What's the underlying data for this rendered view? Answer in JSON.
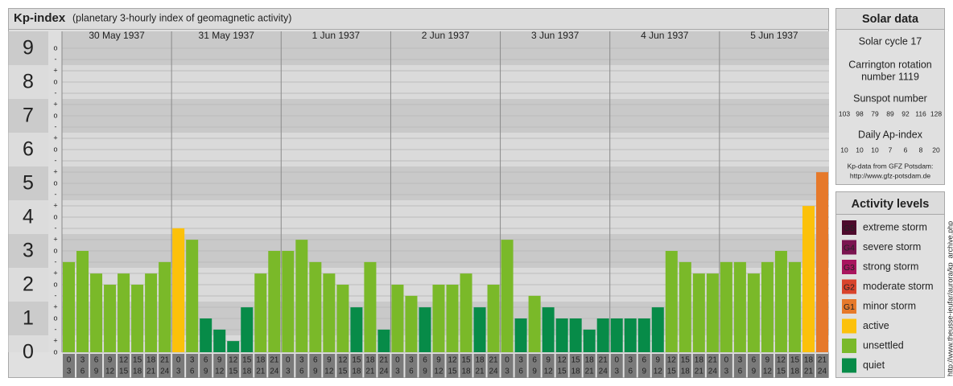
{
  "chart_data": {
    "type": "bar",
    "title": "Kp-index",
    "subtitle": "(planetary 3-hourly index of geomagnetic activity)",
    "days": [
      "30 May 1937",
      "31 May 1937",
      "1 Jun 1937",
      "2 Jun 1937",
      "3 Jun 1937",
      "4 Jun 1937",
      "5 Jun 1937"
    ],
    "hours": [
      [
        "0",
        "3"
      ],
      [
        "3",
        "6"
      ],
      [
        "6",
        "9"
      ],
      [
        "9",
        "12"
      ],
      [
        "12",
        "15"
      ],
      [
        "15",
        "18"
      ],
      [
        "18",
        "21"
      ],
      [
        "21",
        "24"
      ]
    ],
    "values": [
      2.67,
      3,
      2.33,
      2,
      2.33,
      2,
      2.33,
      2.67,
      3.67,
      3.33,
      1,
      0.67,
      0.33,
      1.33,
      2.33,
      3,
      3,
      3.33,
      2.67,
      2.33,
      2,
      1.33,
      2.67,
      0.67,
      2,
      1.67,
      1.33,
      2,
      2,
      2.33,
      1.33,
      2,
      3.33,
      1,
      1.67,
      1.33,
      1,
      1,
      0.67,
      1,
      1,
      1,
      1,
      1.33,
      3,
      2.67,
      2.33,
      2.33,
      2.67,
      2.67,
      2.33,
      2.67,
      3,
      2.67,
      4.33,
      5.33
    ],
    "colors": [
      "#7ab929",
      "#7ab929",
      "#7ab929",
      "#7ab929",
      "#7ab929",
      "#7ab929",
      "#7ab929",
      "#7ab929",
      "#fcc10a",
      "#7ab929",
      "#078b48",
      "#078b48",
      "#078b48",
      "#078b48",
      "#7ab929",
      "#7ab929",
      "#7ab929",
      "#7ab929",
      "#7ab929",
      "#7ab929",
      "#7ab929",
      "#078b48",
      "#7ab929",
      "#078b48",
      "#7ab929",
      "#7ab929",
      "#078b48",
      "#7ab929",
      "#7ab929",
      "#7ab929",
      "#078b48",
      "#7ab929",
      "#7ab929",
      "#078b48",
      "#7ab929",
      "#078b48",
      "#078b48",
      "#078b48",
      "#078b48",
      "#078b48",
      "#078b48",
      "#078b48",
      "#078b48",
      "#078b48",
      "#7ab929",
      "#7ab929",
      "#7ab929",
      "#7ab929",
      "#7ab929",
      "#7ab929",
      "#7ab929",
      "#7ab929",
      "#7ab929",
      "#7ab929",
      "#fcc10a",
      "#e6792a"
    ],
    "ylim": [
      0,
      9.5
    ],
    "yticks": [
      0,
      1,
      2,
      3,
      4,
      5,
      6,
      7,
      8,
      9
    ],
    "minor_tick_labels": [
      "-",
      "o",
      "+"
    ],
    "grid": true
  },
  "solar_data": {
    "title": "Solar data",
    "solar_cycle": "Solar cycle 17",
    "carrington": [
      "Carrington rotation",
      "number 1119"
    ],
    "sunspot_title": "Sunspot number",
    "sunspot_numbers": [
      103,
      98,
      79,
      89,
      92,
      116,
      128
    ],
    "ap_title": "Daily Ap-index",
    "ap_values": [
      10,
      10,
      10,
      7,
      6,
      8,
      20
    ],
    "source": [
      "Kp-data from GFZ Potsdam:",
      "http://www.gfz-potsdam.de"
    ]
  },
  "activity_levels": {
    "title": "Activity levels",
    "items": [
      {
        "code": "G5",
        "label": "extreme storm",
        "color": "#4d0a2c"
      },
      {
        "code": "G4",
        "label": "severe storm",
        "color": "#7a1450"
      },
      {
        "code": "G3",
        "label": "strong storm",
        "color": "#a8155e"
      },
      {
        "code": "G2",
        "label": "moderate storm",
        "color": "#d8432c"
      },
      {
        "code": "G1",
        "label": "minor storm",
        "color": "#e6792a"
      },
      {
        "code": null,
        "label": "active",
        "color": "#fcc10a"
      },
      {
        "code": null,
        "label": "unsettled",
        "color": "#7ab929"
      },
      {
        "code": null,
        "label": "quiet",
        "color": "#078b48"
      }
    ]
  },
  "credit": "http://www.theusse-ieufar/aurora/kp_archive.php"
}
